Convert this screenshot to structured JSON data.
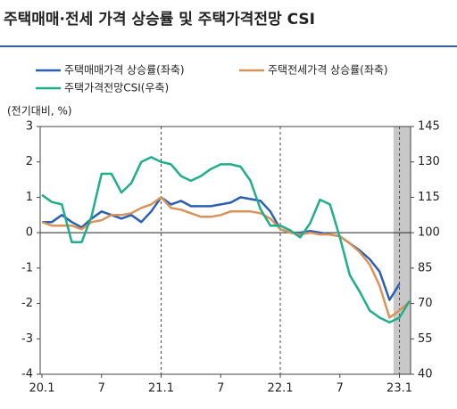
{
  "chart_data": {
    "type": "line",
    "title": "주택매매·전세 가격 상승률 및 주택가격전망 CSI",
    "y_label": "(전기대비, %)",
    "categories": [
      "20.1",
      null,
      null,
      null,
      null,
      null,
      "7",
      null,
      null,
      null,
      null,
      null,
      "21.1",
      null,
      null,
      null,
      null,
      null,
      "7",
      null,
      null,
      null,
      null,
      null,
      "22.1",
      null,
      null,
      null,
      null,
      null,
      "7",
      null,
      null,
      null,
      null,
      null,
      "23.1",
      null
    ],
    "series": [
      {
        "name": "주택매매가격 상승률(좌축)",
        "color": "#2b5fb4",
        "values": [
          0.3,
          0.3,
          0.5,
          0.3,
          0.15,
          0.4,
          0.6,
          0.5,
          0.4,
          0.5,
          0.3,
          0.6,
          1.0,
          0.8,
          0.9,
          0.75,
          0.75,
          0.75,
          0.8,
          0.85,
          1.0,
          0.95,
          0.9,
          0.6,
          0.1,
          0.0,
          0.0,
          0.05,
          0.0,
          -0.05,
          -0.1,
          -0.3,
          -0.5,
          -0.75,
          -1.1,
          -1.9,
          -1.45,
          null
        ]
      },
      {
        "name": "주택전세가격 상승률(좌축)",
        "color": "#d9935a",
        "values": [
          0.3,
          0.2,
          0.2,
          0.2,
          0.1,
          0.3,
          0.35,
          0.5,
          0.5,
          0.55,
          0.7,
          0.8,
          1.0,
          0.7,
          0.65,
          0.55,
          0.45,
          0.45,
          0.5,
          0.6,
          0.6,
          0.6,
          0.55,
          0.4,
          0.1,
          0.0,
          -0.05,
          0.0,
          -0.05,
          -0.05,
          -0.1,
          -0.3,
          -0.55,
          -0.9,
          -1.5,
          -2.4,
          -2.2,
          -1.95
        ]
      },
      {
        "name": "주택가격전망CSI(우축)",
        "color": "#1fae8c",
        "axis": "y2",
        "values": [
          116,
          113,
          112,
          96,
          96,
          107,
          125,
          125,
          117,
          121,
          130,
          132,
          130,
          129,
          124,
          122,
          124,
          127,
          129,
          129,
          128,
          122,
          110,
          103,
          103,
          101,
          98,
          104,
          114,
          112,
          98,
          82,
          75,
          67,
          64,
          62,
          64,
          71
        ]
      }
    ],
    "ylim": [
      -4,
      3
    ],
    "yticks": [
      3,
      2,
      1,
      0,
      -1,
      -2,
      -3,
      -4
    ],
    "y2lim": [
      40,
      145
    ],
    "y2ticks": [
      145,
      130,
      115,
      100,
      85,
      70,
      55,
      40
    ]
  }
}
